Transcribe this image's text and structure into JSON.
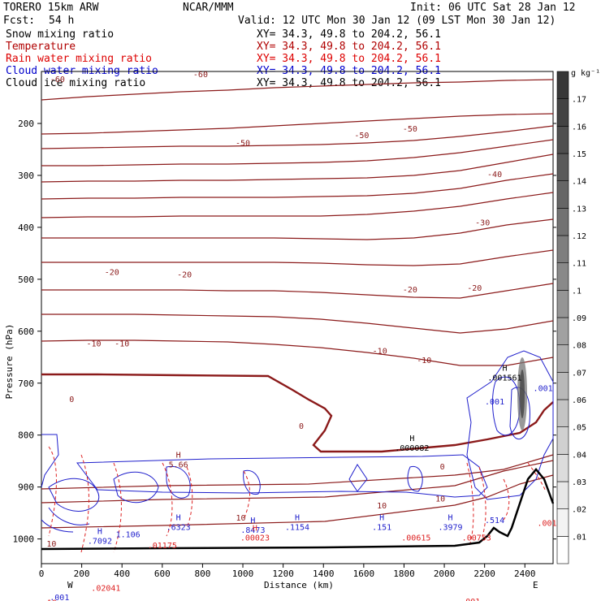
{
  "header": {
    "model": "TORERO  15km ARW",
    "center": "NCAR/MMM",
    "init": "Init: 06 UTC Sat 28 Jan 12",
    "fcst_label": "Fcst:",
    "fcst_value": "54 h",
    "valid": "Valid: 12 UTC Mon 30 Jan 12 (09 LST Mon 30 Jan 12)"
  },
  "fields": [
    {
      "name": "Snow mixing ratio",
      "xy": "XY=  34.3, 49.8 to 204.2, 56.1",
      "color": "#000000"
    },
    {
      "name": "Temperature",
      "xy": "XY=  34.3, 49.8 to 204.2, 56.1",
      "color": "#b00000"
    },
    {
      "name": "Rain water mixing ratio",
      "xy": "XY=  34.3, 49.8 to 204.2, 56.1",
      "color": "#dd0000"
    },
    {
      "name": "Cloud water mixing ratio",
      "xy": "XY=  34.3, 49.8 to 204.2, 56.1",
      "color": "#0000cc"
    },
    {
      "name": "Cloud ice mixing ratio",
      "xy": "XY=  34.3, 49.8 to 204.2, 56.1",
      "color": "#000000"
    }
  ],
  "colors": {
    "temperature": "#8b1a1a",
    "freezing": "#8b1a1a",
    "rain": "#dd2222",
    "cloud": "#1f1fcc",
    "terrain": "#000000"
  },
  "chart_data": {
    "type": "contour",
    "xlabel": "Distance (km)",
    "ylabel": "Pressure (hPa)",
    "xlim": [
      0,
      2540
    ],
    "ylim": [
      1050,
      100
    ],
    "x_ticks": [
      0,
      200,
      400,
      600,
      800,
      1000,
      1200,
      1400,
      1600,
      1800,
      2000,
      2200,
      2400
    ],
    "y_ticks": [
      200,
      300,
      400,
      500,
      600,
      700,
      800,
      900,
      1000
    ],
    "x_ends": {
      "left": "W",
      "right": "E"
    },
    "colorbar": {
      "unit": "g kg⁻¹",
      "levels": [
        ".01",
        ".02",
        ".03",
        ".04",
        ".05",
        ".06",
        ".07",
        ".08",
        ".09",
        ".1",
        ".11",
        ".12",
        ".13",
        ".14",
        ".15",
        ".16",
        ".17"
      ]
    },
    "temperature_labels": [
      {
        "text": "-60",
        "x": 80,
        "p": 120
      },
      {
        "text": "-60",
        "x": 790,
        "p": 111
      },
      {
        "text": "-50",
        "x": 1000,
        "p": 243
      },
      {
        "text": "-50",
        "x": 1590,
        "p": 228
      },
      {
        "text": "-50",
        "x": 1830,
        "p": 216
      },
      {
        "text": "-40",
        "x": 2250,
        "p": 303
      },
      {
        "text": "-30",
        "x": 2190,
        "p": 396
      },
      {
        "text": "-20",
        "x": 350,
        "p": 492
      },
      {
        "text": "-20",
        "x": 710,
        "p": 496
      },
      {
        "text": "-20",
        "x": 1830,
        "p": 525
      },
      {
        "text": "-20",
        "x": 2150,
        "p": 522
      },
      {
        "text": "-10",
        "x": 260,
        "p": 629
      },
      {
        "text": "-10",
        "x": 400,
        "p": 629
      },
      {
        "text": "-10",
        "x": 1680,
        "p": 643
      },
      {
        "text": "-10",
        "x": 1900,
        "p": 661
      },
      {
        "text": "0",
        "x": 150,
        "p": 736
      },
      {
        "text": "0",
        "x": 1290,
        "p": 788
      },
      {
        "text": "0",
        "x": 1990,
        "p": 866
      },
      {
        "text": "10",
        "x": 990,
        "p": 965
      },
      {
        "text": "10",
        "x": 1690,
        "p": 941
      },
      {
        "text": "10",
        "x": 1980,
        "p": 928
      },
      {
        "text": "10",
        "x": 50,
        "p": 1015
      }
    ],
    "maxima_labels": [
      {
        "mark": "H",
        "text": "5.66",
        "x": 680,
        "p": 862,
        "color": "#8b1a1a"
      },
      {
        "mark": "H",
        "text": ".000082",
        "x": 1840,
        "p": 830,
        "color": "#000000"
      },
      {
        "mark": "H",
        "text": ".001561",
        "x": 2300,
        "p": 695,
        "color": "#000000"
      },
      {
        "mark": "",
        "text": ".001",
        "x": 2250,
        "p": 741,
        "color": "#1f1fcc"
      },
      {
        "mark": "",
        "text": ".001",
        "x": 2490,
        "p": 715,
        "color": "#1f1fcc"
      },
      {
        "mark": "H",
        "text": ".6323",
        "x": 680,
        "p": 983,
        "color": "#1f1fcc"
      },
      {
        "mark": "H",
        "text": ".8473",
        "x": 1050,
        "p": 988,
        "color": "#1f1fcc"
      },
      {
        "mark": "H",
        "text": ".1154",
        "x": 1270,
        "p": 983,
        "color": "#1f1fcc"
      },
      {
        "mark": "H",
        "text": ".151",
        "x": 1690,
        "p": 983,
        "color": "#1f1fcc"
      },
      {
        "mark": "H",
        "text": ".3979",
        "x": 2030,
        "p": 983,
        "color": "#1f1fcc"
      },
      {
        "mark": "H",
        "text": ".7092",
        "x": 290,
        "p": 1009,
        "color": "#1f1fcc"
      },
      {
        "mark": "",
        "text": ".514",
        "x": 2250,
        "p": 969,
        "color": "#1f1fcc"
      },
      {
        "mark": "",
        "text": ".001",
        "x": 90,
        "p": 1118,
        "color": "#1f1fcc"
      },
      {
        "mark": "H",
        "text": ".00023",
        "x": 1060,
        "p": 1003,
        "color": "#dd2222"
      },
      {
        "mark": "",
        "text": ".00615",
        "x": 1860,
        "p": 1003,
        "color": "#dd2222"
      },
      {
        "mark": "",
        "text": ".00753",
        "x": 2160,
        "p": 1003,
        "color": "#dd2222"
      },
      {
        "mark": "",
        "text": ".02041",
        "x": 320,
        "p": 1100,
        "color": "#dd2222"
      },
      {
        "mark": "",
        "text": ".01175",
        "x": 600,
        "p": 1018,
        "color": "#dd2222"
      },
      {
        "mark": "",
        "text": ".001",
        "x": 2510,
        "p": 975,
        "color": "#dd2222"
      },
      {
        "mark": "",
        "text": ".001",
        "x": 2130,
        "p": 1126,
        "color": "#dd2222"
      },
      {
        "mark": "",
        "text": ".001",
        "x": 350,
        "p": 1135,
        "color": "#dd2222"
      },
      {
        "mark": "",
        "text": ".10",
        "x": 40,
        "p": 1128,
        "color": "#dd2222"
      },
      {
        "mark": "",
        "text": "1.106",
        "x": 430,
        "p": 997,
        "color": "#1f1fcc"
      }
    ]
  }
}
